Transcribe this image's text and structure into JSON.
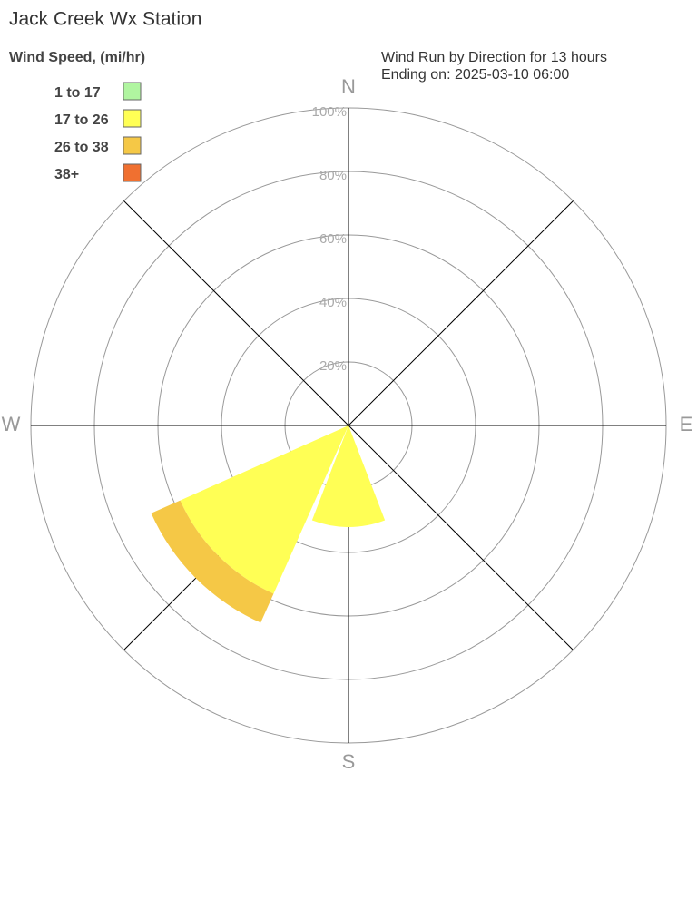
{
  "chart_data": {
    "type": "windrose",
    "title": "Jack Creek Wx Station",
    "legend_title": "Wind Speed, (mi/hr)",
    "subtitle": [
      "Wind Run by Direction for 13 hours",
      "Ending on: 2025-03-10 06:00"
    ],
    "categories": [
      "N",
      null,
      "E",
      null,
      "S",
      null,
      "W",
      null
    ],
    "series": [
      {
        "name": "1 to 17",
        "color": "#b0f5a0",
        "values": [
          0,
          0,
          0,
          0,
          0,
          0,
          0,
          0
        ]
      },
      {
        "name": "17 to 26",
        "color": "#ffff55",
        "values": [
          0,
          0,
          0,
          0,
          32,
          58,
          0,
          0
        ]
      },
      {
        "name": "26 to 38",
        "color": "#f5c846",
        "values": [
          0,
          0,
          0,
          0,
          0,
          10,
          0,
          0
        ]
      },
      {
        "name": "38+",
        "color": "#f07030",
        "values": [
          0,
          0,
          0,
          0,
          0,
          0,
          0,
          0
        ]
      }
    ],
    "rlim": [
      0,
      100
    ],
    "rticks": [
      {
        "value": 20,
        "label": "20%"
      },
      {
        "value": 40,
        "label": "40%"
      },
      {
        "value": 60,
        "label": "60%"
      },
      {
        "value": 80,
        "label": "80%"
      },
      {
        "value": 100,
        "label": "100%"
      }
    ]
  }
}
